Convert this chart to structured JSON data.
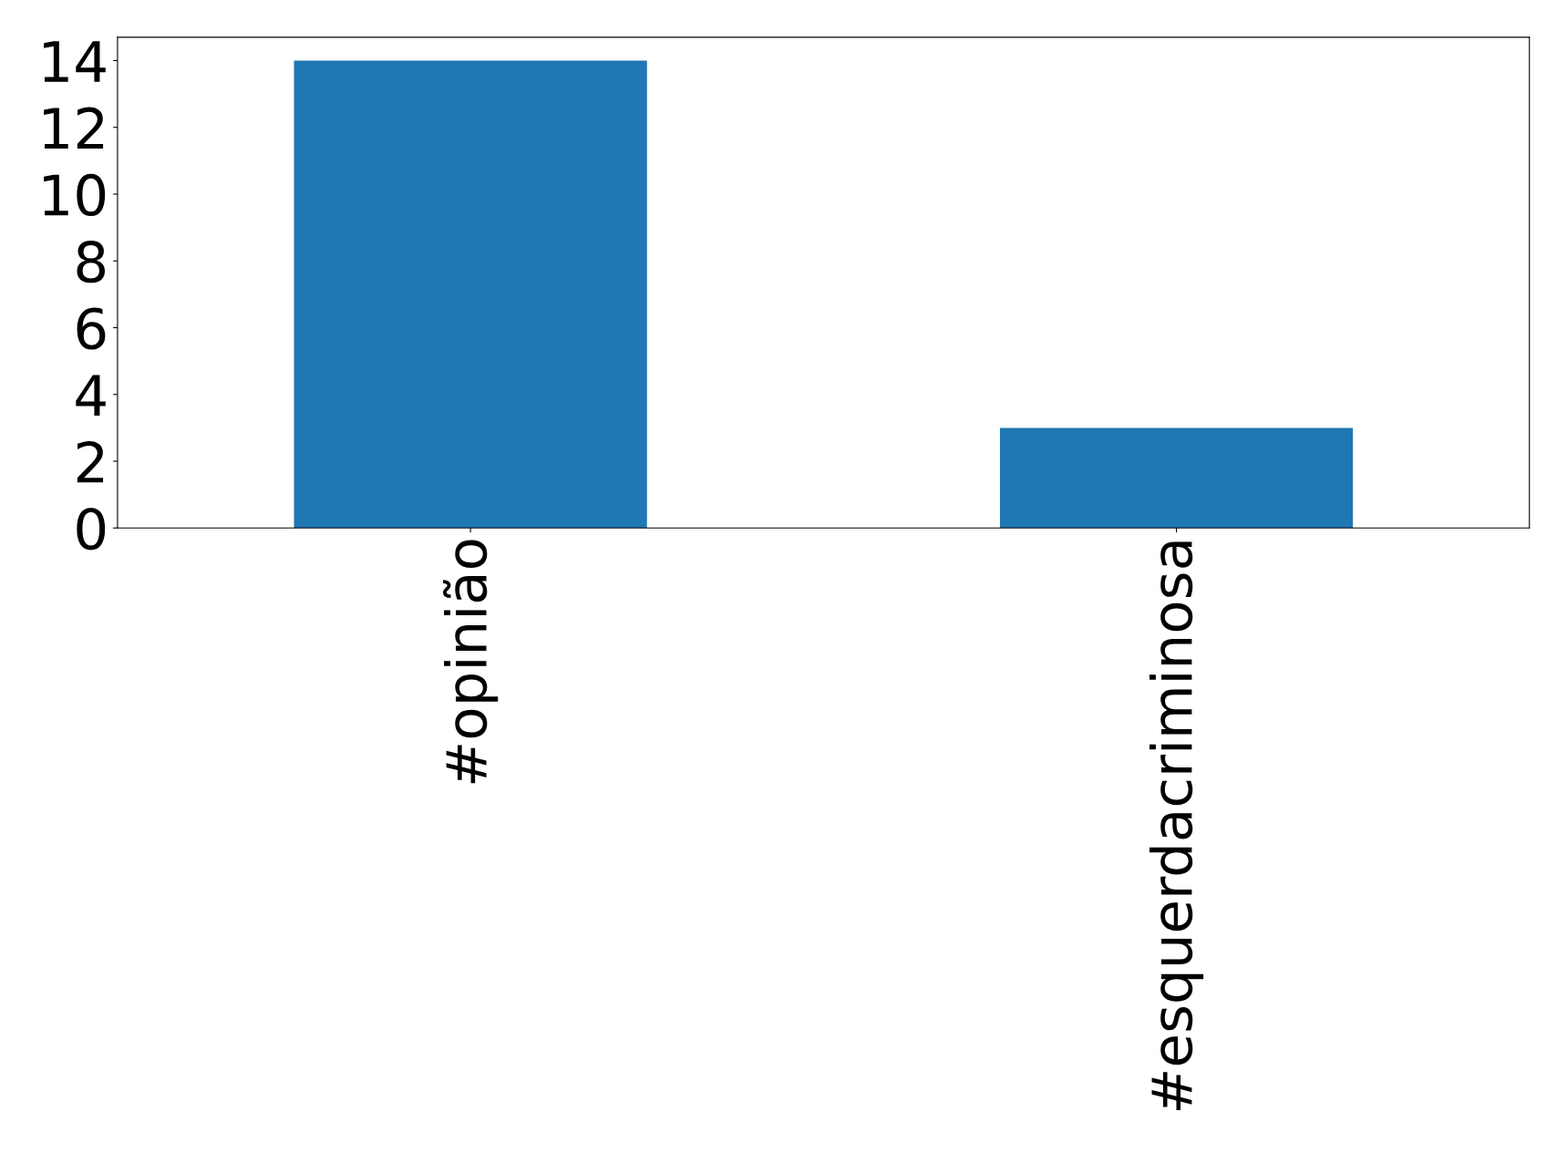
{
  "chart_data": {
    "type": "bar",
    "categories": [
      "#opinião",
      "#esquerdacriminosa"
    ],
    "values": [
      14,
      3
    ],
    "color": "#1f77b4",
    "ylim": [
      0,
      14.7
    ],
    "yticks": [
      0,
      2,
      4,
      6,
      8,
      10,
      12,
      14
    ],
    "grid": false,
    "legend": false
  }
}
